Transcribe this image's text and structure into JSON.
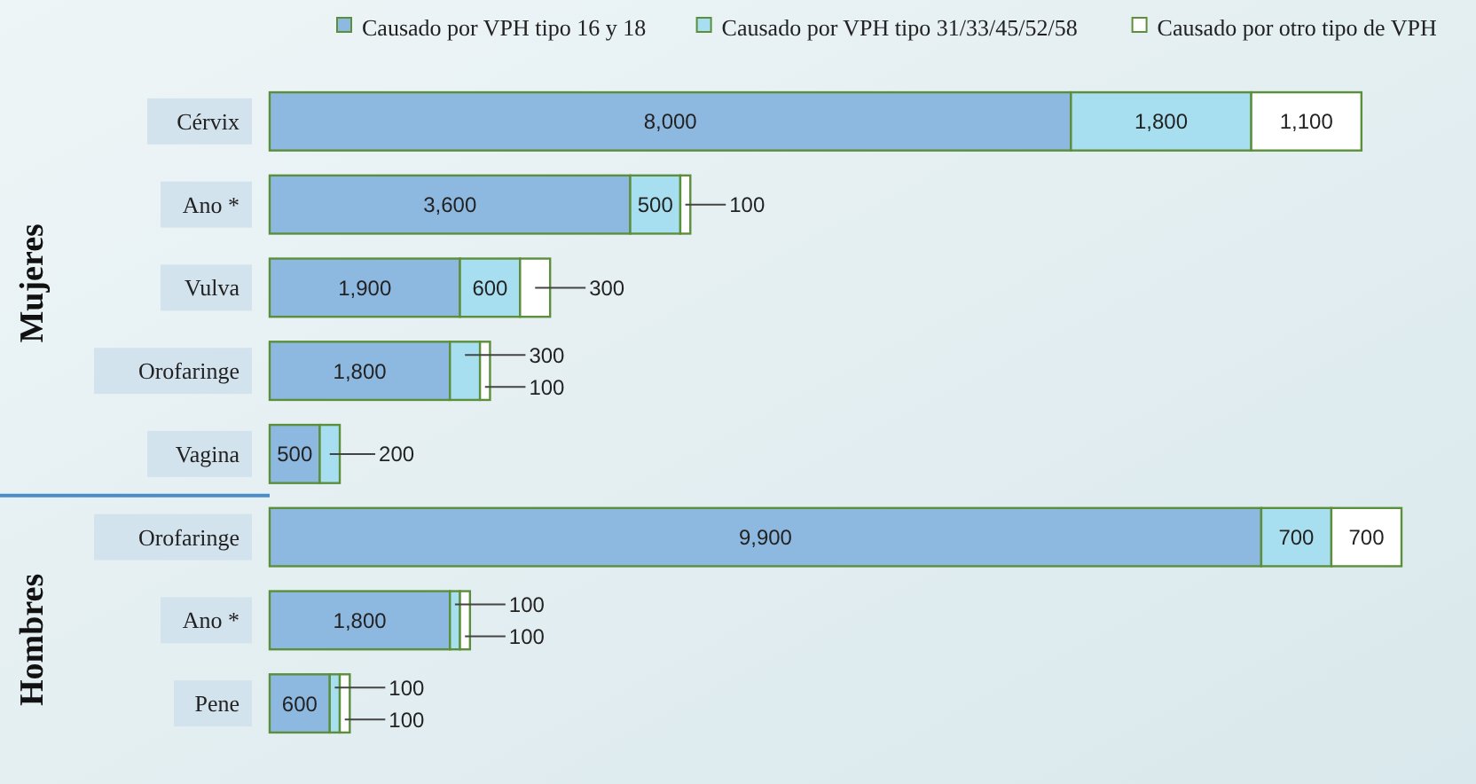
{
  "chart_data": {
    "type": "bar",
    "orientation": "horizontal",
    "stacked": true,
    "legend": "top",
    "categories": [
      "Cérvix",
      "Ano *",
      "Vulva",
      "Orofaringe",
      "Vagina",
      "Orofaringe",
      "Ano *",
      "Pene"
    ],
    "series": [
      {
        "name": "Causado por VPH tipo 16 y 18",
        "color": "#8db8e0",
        "values": [
          8000,
          3600,
          1900,
          1800,
          500,
          9900,
          1800,
          600
        ],
        "value_labels": [
          "8,000",
          "3,600",
          "1,900",
          "1,800",
          "500",
          "9,900",
          "1,800",
          "600"
        ]
      },
      {
        "name": "Causado por VPH tipo 31/33/45/52/58",
        "color": "#a8dff0",
        "values": [
          1800,
          500,
          600,
          300,
          200,
          700,
          100,
          100
        ],
        "value_labels": [
          "1,800",
          "500",
          "600",
          "300",
          "200",
          "700",
          "100",
          "100"
        ]
      },
      {
        "name": "Causado por otro tipo de VPH",
        "color": "#ffffff",
        "values": [
          1100,
          100,
          300,
          100,
          null,
          700,
          100,
          100
        ],
        "value_labels": [
          "1,100",
          "100",
          "300",
          "100",
          null,
          "700",
          "100",
          "100"
        ]
      }
    ],
    "annotations": [
      "Mujeres",
      "Hombres"
    ]
  }
}
